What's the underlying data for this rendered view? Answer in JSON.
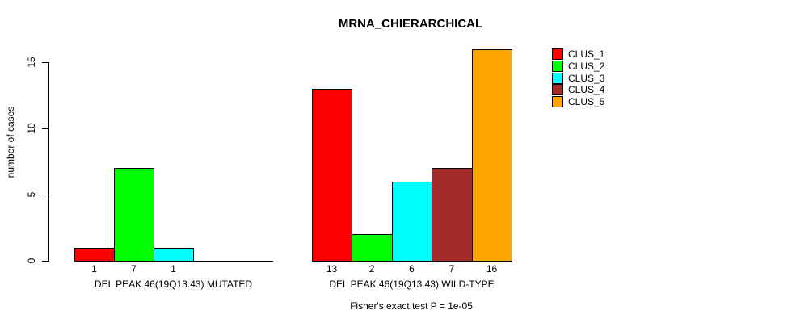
{
  "chart_data": {
    "type": "bar",
    "title": "MRNA_CHIERARCHICAL",
    "ylabel": "number of cases",
    "xlabel": "",
    "ylim": [
      0,
      16
    ],
    "yticks": [
      0,
      5,
      10,
      15
    ],
    "grid": false,
    "legend_position": "top-right",
    "legend": [
      {
        "label": "CLUS_1",
        "color": "#ff0000"
      },
      {
        "label": "CLUS_2",
        "color": "#00ff00"
      },
      {
        "label": "CLUS_3",
        "color": "#00ffff"
      },
      {
        "label": "CLUS_4",
        "color": "#a52a2a"
      },
      {
        "label": "CLUS_5",
        "color": "#ffa500"
      }
    ],
    "groups": [
      {
        "label": "DEL PEAK 46(19Q13.43) MUTATED",
        "values": [
          1,
          7,
          1,
          0,
          0
        ],
        "bar_labels": [
          "1",
          "7",
          "1",
          "",
          ""
        ]
      },
      {
        "label": "DEL PEAK 46(19Q13.43) WILD-TYPE",
        "values": [
          13,
          2,
          6,
          7,
          16
        ],
        "bar_labels": [
          "13",
          "2",
          "6",
          "7",
          "16"
        ]
      }
    ],
    "annotation": "Fisher's exact test P = 1e-05"
  }
}
